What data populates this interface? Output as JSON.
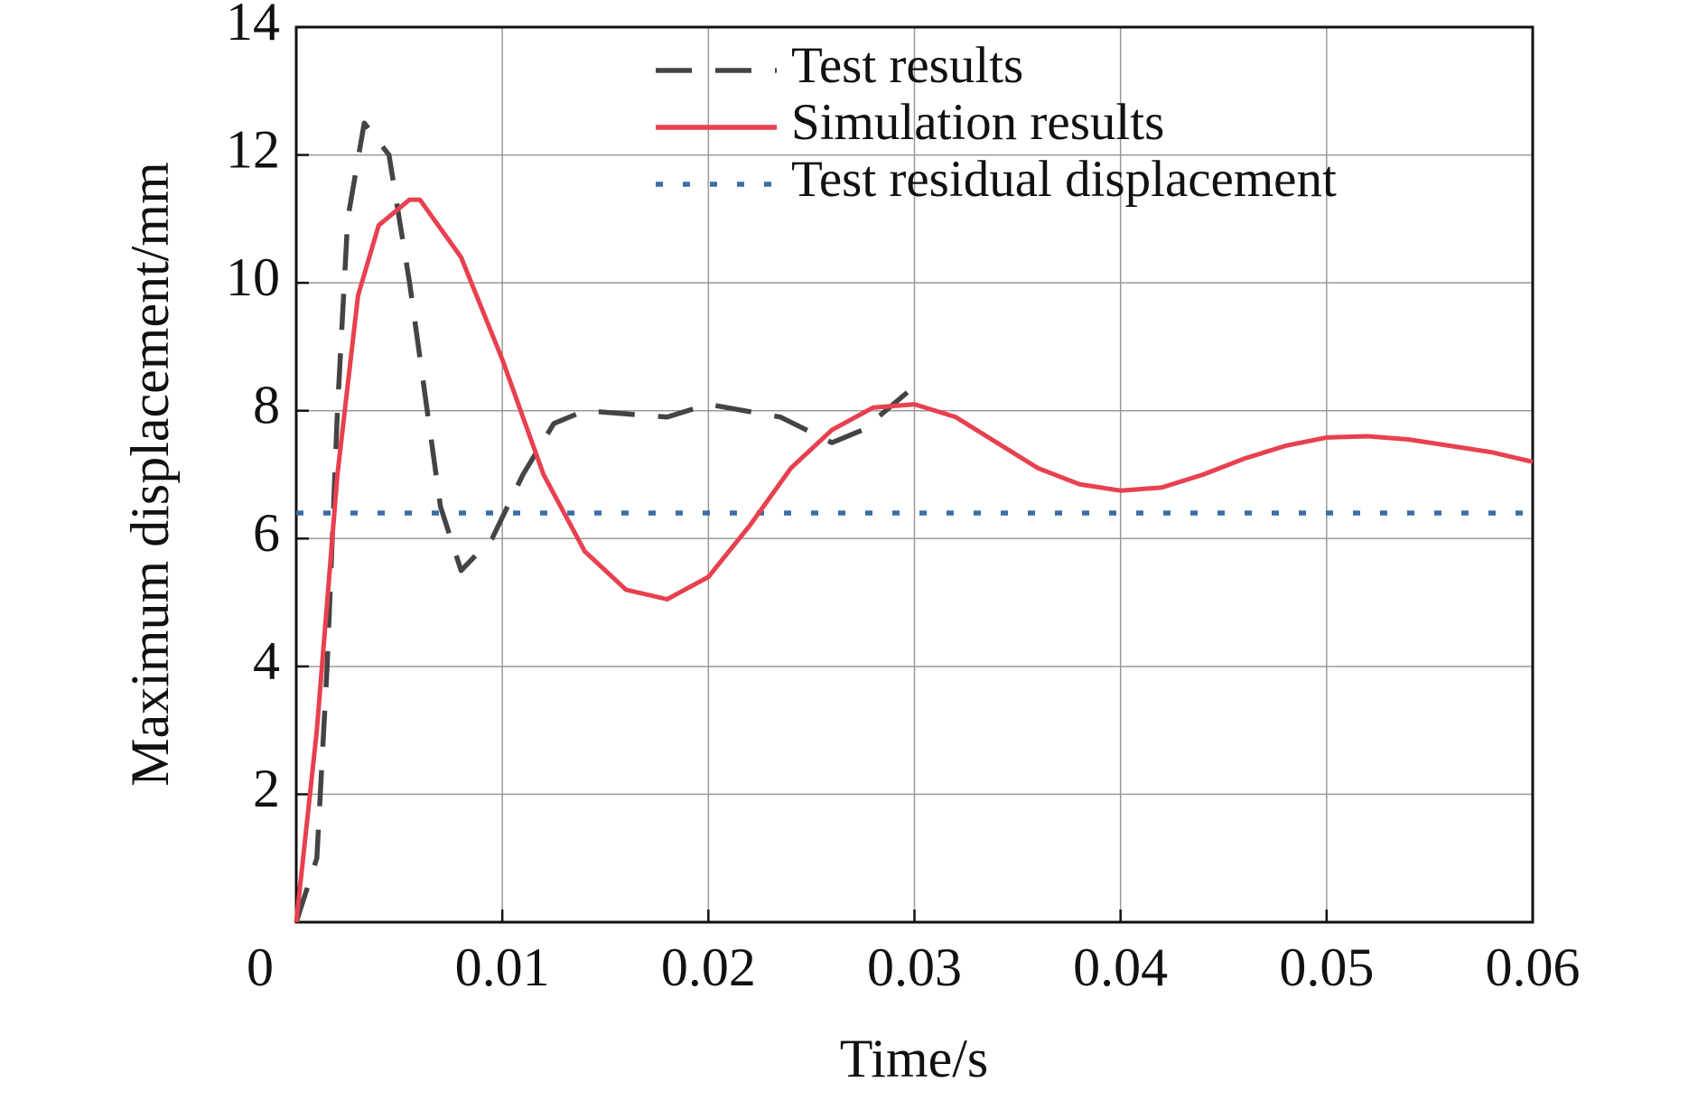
{
  "chart_data": {
    "type": "line",
    "xlabel": "Time/s",
    "ylabel": "Maximum displacement/mm",
    "xlim": [
      0,
      0.06
    ],
    "ylim": [
      0,
      14
    ],
    "xticks": [
      0,
      0.01,
      0.02,
      0.03,
      0.04,
      0.05,
      0.06
    ],
    "yticks": [
      2,
      4,
      6,
      8,
      10,
      12,
      14
    ],
    "grid": true,
    "legend": "top",
    "series": [
      {
        "name": "Test results",
        "color": "#444444",
        "style": "dashed",
        "x": [
          0,
          0.001,
          0.0015,
          0.002,
          0.0025,
          0.0033,
          0.0045,
          0.0055,
          0.007,
          0.008,
          0.0095,
          0.011,
          0.0125,
          0.014,
          0.018,
          0.02,
          0.0235,
          0.026,
          0.0275,
          0.0297
        ],
        "values": [
          0,
          1,
          4,
          8,
          11,
          12.5,
          12,
          10,
          6.5,
          5.5,
          6,
          7,
          7.8,
          8.0,
          7.9,
          8.1,
          7.9,
          7.5,
          7.7,
          8.3
        ]
      },
      {
        "name": "Simulation results",
        "color": "#e8404f",
        "style": "solid",
        "x": [
          0,
          0.001,
          0.002,
          0.003,
          0.004,
          0.0055,
          0.006,
          0.008,
          0.01,
          0.012,
          0.014,
          0.016,
          0.018,
          0.02,
          0.022,
          0.024,
          0.026,
          0.028,
          0.03,
          0.032,
          0.034,
          0.036,
          0.038,
          0.04,
          0.042,
          0.044,
          0.046,
          0.048,
          0.05,
          0.052,
          0.054,
          0.056,
          0.058,
          0.06
        ],
        "values": [
          0,
          3,
          7,
          9.8,
          10.9,
          11.3,
          11.3,
          10.4,
          8.8,
          7.0,
          5.8,
          5.2,
          5.05,
          5.4,
          6.2,
          7.1,
          7.7,
          8.05,
          8.1,
          7.9,
          7.5,
          7.1,
          6.85,
          6.75,
          6.8,
          7.0,
          7.25,
          7.45,
          7.58,
          7.6,
          7.55,
          7.45,
          7.35,
          7.2
        ]
      },
      {
        "name": "Test residual displacement",
        "color": "#3a6ea5",
        "style": "dotted",
        "x": [
          0,
          0.06
        ],
        "values": [
          6.4,
          6.4
        ]
      }
    ]
  }
}
